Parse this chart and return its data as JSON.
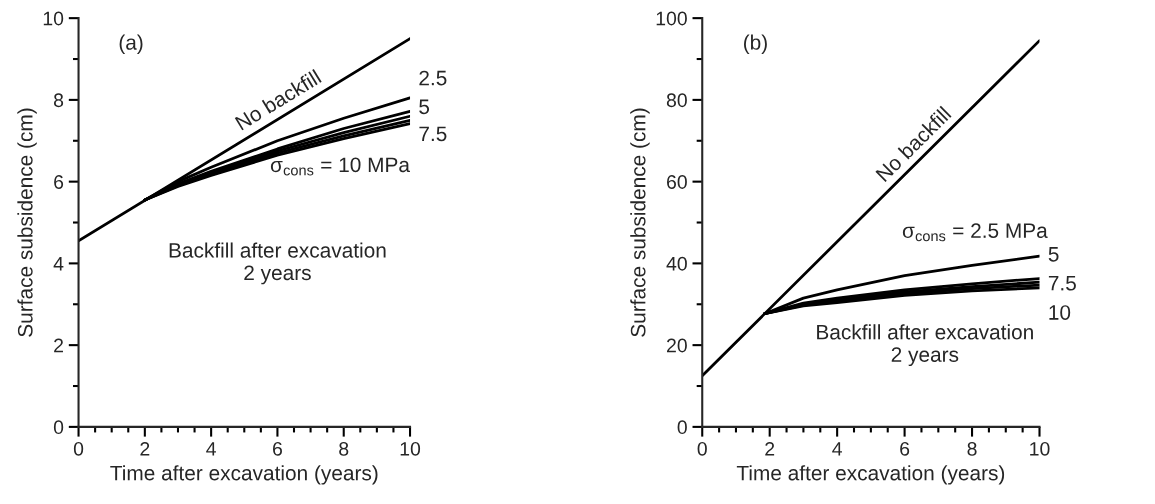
{
  "chart_data": [
    {
      "type": "line",
      "title": "(a)",
      "xlabel": "Time after excavation (years)",
      "ylabel": "Surface subsidence (cm)",
      "xlim": [
        0,
        10
      ],
      "ylim": [
        0,
        10
      ],
      "xticks": [
        0,
        {
          "value": 0.5,
          "label": null
        },
        {
          "value": 1,
          "label": null
        },
        {
          "value": 1.5,
          "label": null
        },
        2,
        {
          "value": 2.5,
          "label": null
        },
        {
          "value": 3,
          "label": null
        },
        {
          "value": 3.5,
          "label": null
        },
        4,
        {
          "value": 4.5,
          "label": null
        },
        {
          "value": 5,
          "label": null
        },
        {
          "value": 5.5,
          "label": null
        },
        6,
        {
          "value": 6.5,
          "label": null
        },
        {
          "value": 7,
          "label": null
        },
        {
          "value": 7.5,
          "label": null
        },
        8,
        {
          "value": 8.5,
          "label": null
        },
        {
          "value": 9,
          "label": null
        },
        {
          "value": 9.5,
          "label": null
        },
        10
      ],
      "yticks": [
        0,
        {
          "value": 1,
          "label": null
        },
        2,
        {
          "value": 3,
          "label": null
        },
        4,
        {
          "value": 5,
          "label": null
        },
        6,
        {
          "value": 7,
          "label": null
        },
        8,
        {
          "value": 9,
          "label": null
        },
        10
      ],
      "marker": "none",
      "line_style": "solid",
      "series": [
        {
          "color": "#000000",
          "x": [
            0,
            10
          ],
          "values": [
            4.55,
            9.5
          ]
        },
        {
          "color": "#000000",
          "x": [
            2,
            3,
            4,
            6,
            8,
            10
          ],
          "values": [
            5.55,
            6.0,
            6.35,
            7.0,
            7.55,
            8.05
          ]
        },
        {
          "color": "#000000",
          "x": [
            2,
            3,
            4,
            6,
            8,
            10
          ],
          "values": [
            5.55,
            5.95,
            6.25,
            6.8,
            7.3,
            7.72
          ]
        },
        {
          "color": "#000000",
          "x": [
            2,
            3,
            4,
            6,
            8,
            10
          ],
          "values": [
            5.55,
            5.92,
            6.2,
            6.75,
            7.2,
            7.6
          ]
        },
        {
          "color": "#000000",
          "x": [
            2,
            3,
            4,
            6,
            8,
            10
          ],
          "values": [
            5.55,
            5.9,
            6.18,
            6.7,
            7.12,
            7.5
          ]
        },
        {
          "color": "#000000",
          "x": [
            2,
            3,
            4,
            6,
            8,
            10
          ],
          "values": [
            5.55,
            5.88,
            6.15,
            6.65,
            7.05,
            7.42
          ]
        }
      ],
      "annotations": [
        {
          "text": "No backfill",
          "x": 6.2,
          "y": 7.62
        },
        {
          "text": "2.5",
          "x": 10,
          "y": 8.05
        },
        {
          "text": "5",
          "x": 10,
          "y": 7.72
        },
        {
          "text": "7.5",
          "x": 10,
          "y": 7.5
        },
        {
          "text": "σ$_{cons}$ = 10 MPa",
          "x": 10,
          "y": 7.42
        },
        "Backfill after excavation\n2 years"
      ]
    },
    {
      "type": "line",
      "title": "(b)",
      "xlabel": "Time after excavation (years)",
      "ylabel": "Surface subsidence (cm)",
      "xlim": [
        0,
        10
      ],
      "ylim": [
        0,
        100
      ],
      "xticks": [
        0,
        {
          "value": 0.5,
          "label": null
        },
        {
          "value": 1,
          "label": null
        },
        {
          "value": 1.5,
          "label": null
        },
        2,
        {
          "value": 2.5,
          "label": null
        },
        {
          "value": 3,
          "label": null
        },
        {
          "value": 3.5,
          "label": null
        },
        4,
        {
          "value": 4.5,
          "label": null
        },
        {
          "value": 5,
          "label": null
        },
        {
          "value": 5.5,
          "label": null
        },
        6,
        {
          "value": 6.5,
          "label": null
        },
        {
          "value": 7,
          "label": null
        },
        {
          "value": 7.5,
          "label": null
        },
        8,
        {
          "value": 8.5,
          "label": null
        },
        {
          "value": 9,
          "label": null
        },
        {
          "value": 9.5,
          "label": null
        },
        10
      ],
      "yticks": [
        0,
        {
          "value": 10,
          "label": null
        },
        20,
        {
          "value": 30,
          "label": null
        },
        40,
        {
          "value": 50,
          "label": null
        },
        60,
        {
          "value": 70,
          "label": null
        },
        80,
        {
          "value": 90,
          "label": null
        },
        100
      ],
      "marker": "none",
      "line_style": "solid",
      "series": [
        {
          "color": "#000000",
          "x": [
            0,
            10
          ],
          "values": [
            12.5,
            94.5
          ]
        },
        {
          "color": "#000000",
          "x": [
            1.85,
            3,
            4,
            6,
            8,
            10
          ],
          "values": [
            27.7,
            31.5,
            33.5,
            37,
            39.5,
            41.8
          ]
        },
        {
          "color": "#000000",
          "x": [
            1.85,
            3,
            4,
            6,
            8,
            10
          ],
          "values": [
            27.7,
            30.3,
            31.5,
            33.5,
            35,
            36.3
          ]
        },
        {
          "color": "#000000",
          "x": [
            1.85,
            3,
            4,
            6,
            8,
            10
          ],
          "values": [
            27.7,
            30,
            31,
            33,
            34.3,
            35.4
          ]
        },
        {
          "color": "#000000",
          "x": [
            1.85,
            3,
            4,
            6,
            8,
            10
          ],
          "values": [
            27.7,
            29.8,
            30.7,
            32.6,
            33.8,
            34.7
          ]
        },
        {
          "color": "#000000",
          "x": [
            1.85,
            3,
            4,
            6,
            8,
            10
          ],
          "values": [
            27.7,
            29.6,
            30.4,
            32.2,
            33.3,
            34.0
          ]
        }
      ],
      "annotations": [
        {
          "text": "No backfill",
          "x": 6.5,
          "y": 65.8
        },
        {
          "text": "σ$_{cons}$ = 2.5 MPa",
          "x": 10,
          "y": 41.8
        },
        {
          "text": "5",
          "x": 10,
          "y": 41.8
        },
        {
          "text": "7.5",
          "x": 10,
          "y": 35.4
        },
        {
          "text": "10",
          "x": 10,
          "y": 34.0
        },
        "Backfill after excavation\n2 years"
      ]
    }
  ]
}
